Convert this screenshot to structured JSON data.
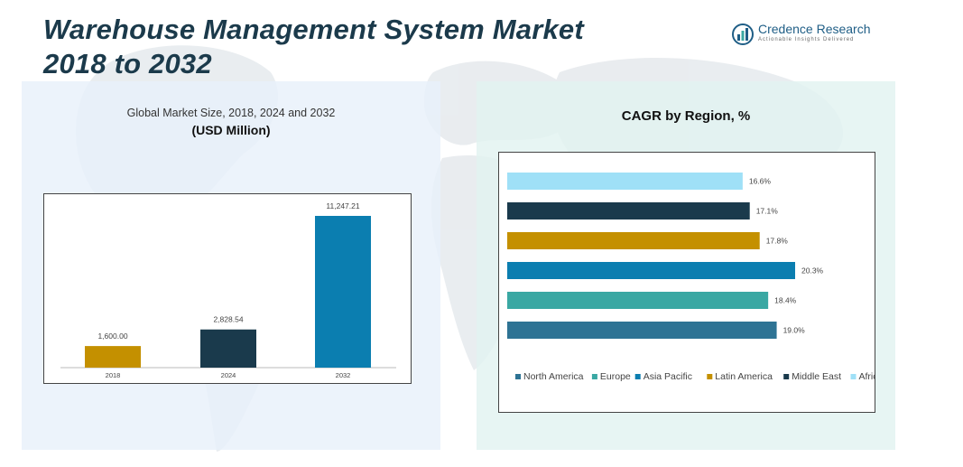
{
  "header": {
    "title_line1": "Warehouse Management System Market",
    "title_line2": "2018 to 2032"
  },
  "brand": {
    "name": "Credence Research",
    "tagline": "Actionable Insights Delivered"
  },
  "colors": {
    "title": "#1b3a4b",
    "north_america": "#2e7394",
    "europe": "#3aa8a3",
    "asia_pacific": "#0b7eb0",
    "latin_america": "#c49000",
    "middle_east": "#1a3a4c",
    "africa": "#9fe0f7"
  },
  "chart_data": [
    {
      "type": "bar",
      "title": "Global Market Size, 2018, 2024 and 2032",
      "unit_label": "(USD Million)",
      "categories": [
        "2018",
        "2024",
        "2032"
      ],
      "values": [
        1600.0,
        2828.54,
        11247.21
      ],
      "value_labels": [
        "1,600.00",
        "2,828.54",
        "11,247.21"
      ],
      "bar_colors": [
        "#c49000",
        "#1a3a4c",
        "#0b7eb0"
      ],
      "ylim": [
        0,
        11247.21
      ]
    },
    {
      "type": "bar",
      "orientation": "horizontal",
      "title": "CAGR by Region, %",
      "categories": [
        "Africa",
        "Middle East",
        "Latin America",
        "Asia Pacific",
        "Europe",
        "North America"
      ],
      "values": [
        16.6,
        17.1,
        17.8,
        20.3,
        18.4,
        19.0
      ],
      "value_labels": [
        "16.6%",
        "17.1%",
        "17.8%",
        "20.3%",
        "18.4%",
        "19.0%"
      ],
      "bar_colors": [
        "#9fe0f7",
        "#1a3a4c",
        "#c49000",
        "#0b7eb0",
        "#3aa8a3",
        "#2e7394"
      ],
      "legend": {
        "placement": "bottom",
        "items": [
          {
            "label": "North America",
            "color": "#2e7394"
          },
          {
            "label": "Europe",
            "color": "#3aa8a3"
          },
          {
            "label": "Asia Pacific",
            "color": "#0b7eb0"
          },
          {
            "label": "Latin America",
            "color": "#c49000"
          },
          {
            "label": "Middle East",
            "color": "#1a3a4c"
          },
          {
            "label": "Africa",
            "color": "#9fe0f7"
          }
        ]
      },
      "xlim": [
        0,
        20.3
      ]
    }
  ]
}
